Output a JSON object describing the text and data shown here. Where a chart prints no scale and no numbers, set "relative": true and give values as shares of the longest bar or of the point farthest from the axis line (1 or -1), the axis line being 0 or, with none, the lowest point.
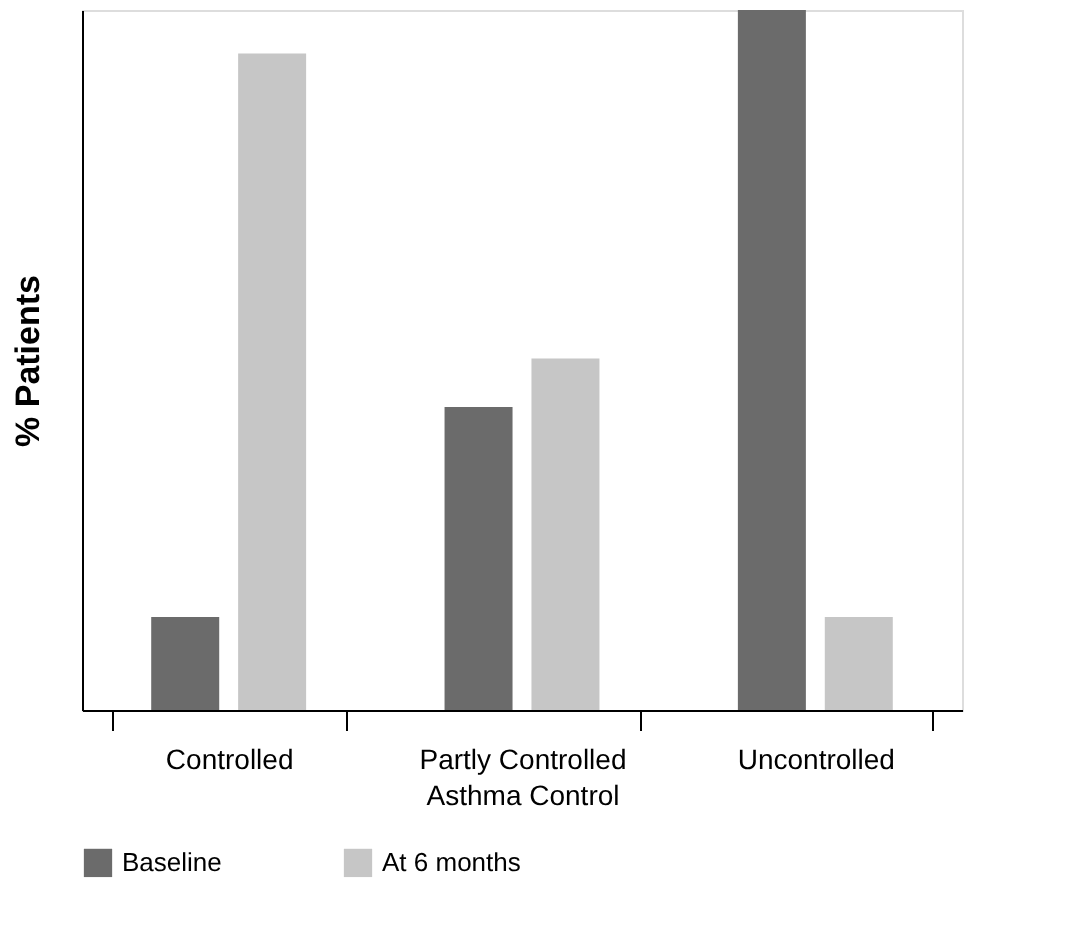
{
  "chart_data": {
    "type": "bar",
    "xlabel": "Asthma Control",
    "ylabel": "% Patients",
    "relative": true,
    "categories": [
      "Controlled",
      "Partly Controlled",
      "Uncontrolled"
    ],
    "series": [
      {
        "name": "Baseline",
        "color": "#6b6b6b",
        "values": [
          0.133,
          0.433,
          1.0
        ]
      },
      {
        "name": "At 6 months",
        "color": "#c6c6c6",
        "values": [
          0.938,
          0.502,
          0.133
        ]
      }
    ],
    "legend": "bottom",
    "grid": false
  }
}
